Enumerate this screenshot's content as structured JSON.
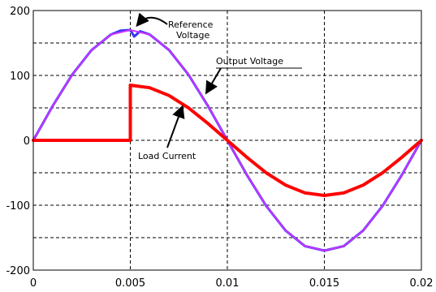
{
  "chart_data": {
    "type": "line",
    "title": "",
    "xlabel": "",
    "ylabel": "",
    "xlim": [
      0,
      0.02
    ],
    "ylim": [
      -200,
      200
    ],
    "grid": true,
    "legend": "none",
    "xticks": [
      0,
      0.005,
      0.01,
      0.015,
      0.02
    ],
    "xtick_labels": [
      "0",
      "0.005",
      "0.01",
      "0.015",
      "0.02"
    ],
    "yticks": [
      -200,
      -100,
      0,
      100,
      200
    ],
    "ytick_labels": [
      "-200",
      "-100",
      "0",
      "100",
      "200"
    ],
    "minor_grid_y": [
      -150,
      -50,
      50,
      150
    ],
    "series": [
      {
        "name": "Reference Voltage",
        "color": "#3333ff",
        "x": [
          0,
          0.001,
          0.002,
          0.003,
          0.004,
          0.0045,
          0.005,
          0.0052,
          0.0055,
          0.006,
          0.007,
          0.008,
          0.009,
          0.01,
          0.011,
          0.012,
          0.013,
          0.014,
          0.015,
          0.016,
          0.017,
          0.018,
          0.019,
          0.02
        ],
        "y": [
          0,
          53,
          101,
          139,
          163,
          169,
          170,
          160,
          168,
          163,
          139,
          101,
          53,
          0,
          -53,
          -101,
          -139,
          -163,
          -170,
          -163,
          -139,
          -101,
          -53,
          0
        ]
      },
      {
        "name": "Output Voltage",
        "color": "#cc33ff",
        "x": [
          0,
          0.001,
          0.002,
          0.003,
          0.004,
          0.005,
          0.006,
          0.007,
          0.008,
          0.009,
          0.01,
          0.011,
          0.012,
          0.013,
          0.014,
          0.015,
          0.016,
          0.017,
          0.018,
          0.019,
          0.02
        ],
        "y": [
          0,
          53,
          101,
          139,
          163,
          170,
          163,
          139,
          101,
          53,
          0,
          -53,
          -101,
          -139,
          -163,
          -170,
          -163,
          -139,
          -101,
          -53,
          0
        ]
      },
      {
        "name": "Load Current",
        "color": "#ff0000",
        "x": [
          0,
          0.005,
          0.005,
          0.006,
          0.007,
          0.008,
          0.009,
          0.01,
          0.011,
          0.012,
          0.013,
          0.014,
          0.015,
          0.016,
          0.017,
          0.018,
          0.019,
          0.02
        ],
        "y": [
          0,
          0,
          85,
          81,
          69,
          50,
          26,
          0,
          -26,
          -50,
          -69,
          -81,
          -85,
          -81,
          -69,
          -50,
          -26,
          0
        ]
      }
    ],
    "annotations": [
      {
        "text": "Reference",
        "line": 1
      },
      {
        "text": "Voltage",
        "line": 2
      },
      {
        "text": "Output Voltage"
      },
      {
        "text": "Load Current"
      }
    ]
  }
}
